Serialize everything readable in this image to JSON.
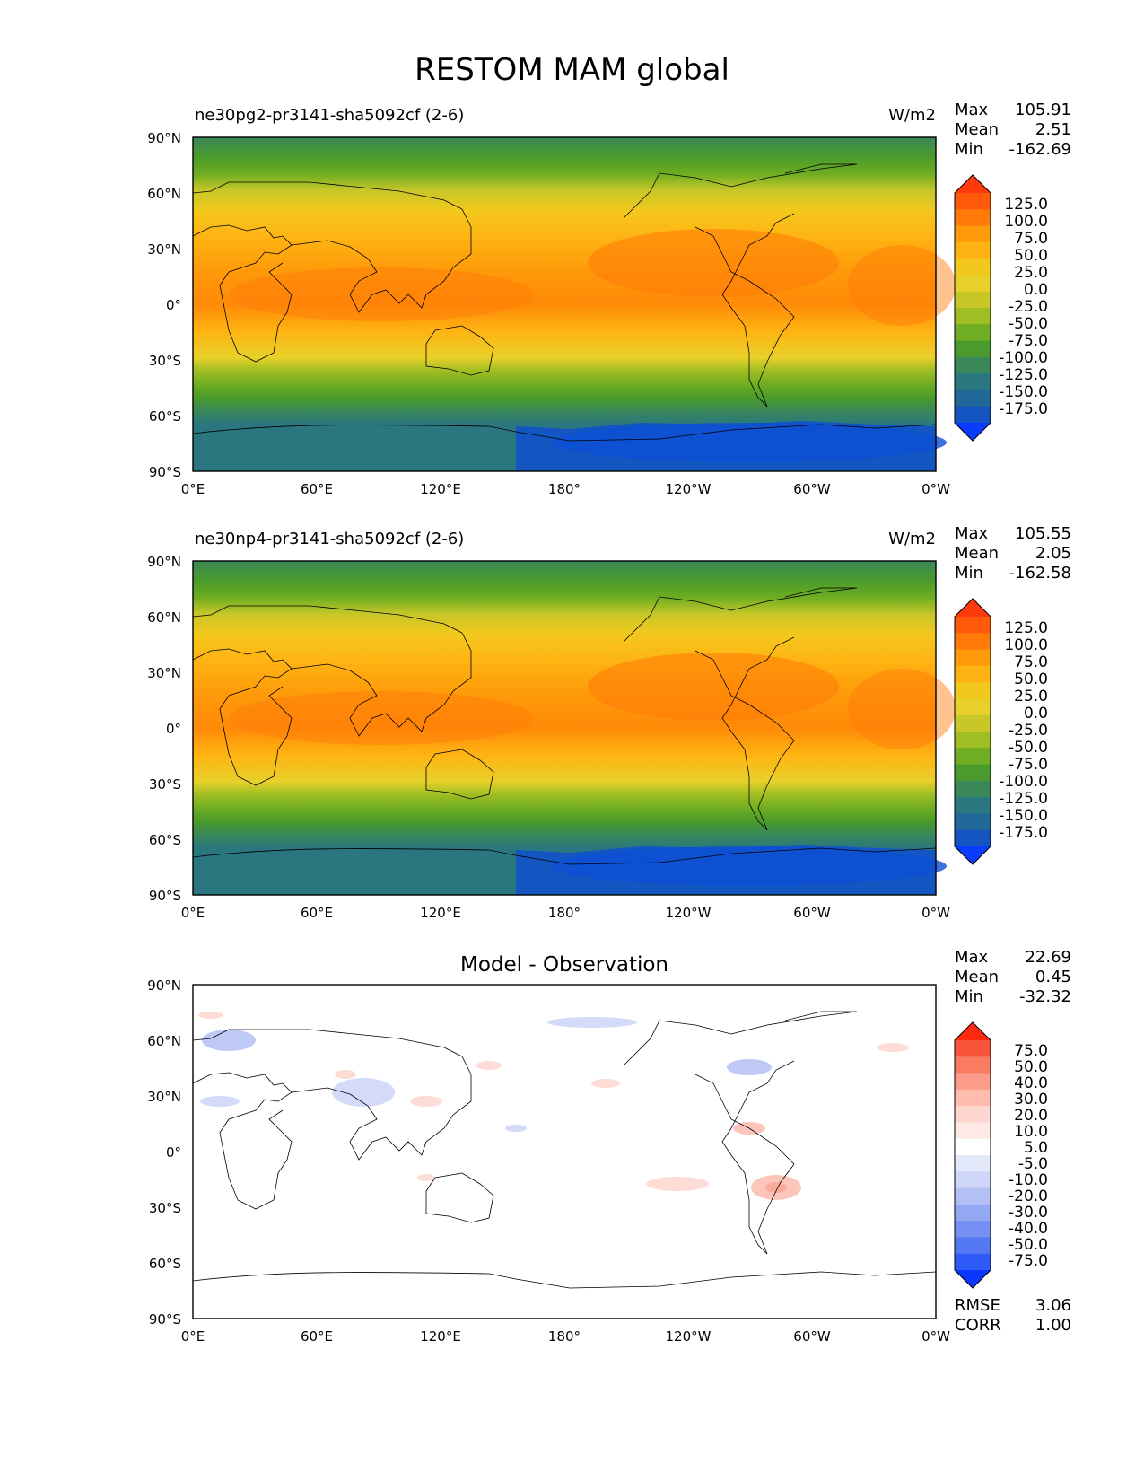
{
  "figure": {
    "title": "RESTOM MAM global"
  },
  "axes": {
    "lat_ticks": [
      "90°N",
      "60°N",
      "30°N",
      "0°",
      "30°S",
      "60°S",
      "90°S"
    ],
    "lon_ticks": [
      "0°E",
      "60°E",
      "120°E",
      "180°",
      "120°W",
      "60°W",
      "0°W"
    ]
  },
  "panels": [
    {
      "title_left": "ne30pg2-pr3141-sha5092cf (2-6)",
      "title_center": "",
      "units": "W/m2",
      "stats": {
        "max_label": "Max",
        "max": "105.91",
        "mean_label": "Mean",
        "mean": "2.51",
        "min_label": "Min",
        "min": "-162.69"
      },
      "colorbar": {
        "labels": [
          "125.0",
          "100.0",
          "75.0",
          "50.0",
          "25.0",
          "0.0",
          "-25.0",
          "-50.0",
          "-75.0",
          "-100.0",
          "-125.0",
          "-150.0",
          "-175.0"
        ],
        "colors": [
          "#ff3a0d",
          "#ff5a0a",
          "#ff7a08",
          "#ff9a0a",
          "#ffb312",
          "#f3c81c",
          "#e8d02a",
          "#c9c728",
          "#9fbe23",
          "#6fad22",
          "#4a9b2b",
          "#3a8858",
          "#2a7780",
          "#1f6898",
          "#1356c2",
          "#0a3cff"
        ]
      }
    },
    {
      "title_left": "ne30np4-pr3141-sha5092cf (2-6)",
      "title_center": "",
      "units": "W/m2",
      "stats": {
        "max_label": "Max",
        "max": "105.55",
        "mean_label": "Mean",
        "mean": "2.05",
        "min_label": "Min",
        "min": "-162.58"
      },
      "colorbar": {
        "labels": [
          "125.0",
          "100.0",
          "75.0",
          "50.0",
          "25.0",
          "0.0",
          "-25.0",
          "-50.0",
          "-75.0",
          "-100.0",
          "-125.0",
          "-150.0",
          "-175.0"
        ],
        "colors": [
          "#ff3a0d",
          "#ff5a0a",
          "#ff7a08",
          "#ff9a0a",
          "#ffb312",
          "#f3c81c",
          "#e8d02a",
          "#c9c728",
          "#9fbe23",
          "#6fad22",
          "#4a9b2b",
          "#3a8858",
          "#2a7780",
          "#1f6898",
          "#1356c2",
          "#0a3cff"
        ]
      }
    },
    {
      "title_left": "",
      "title_center": "Model - Observation",
      "units": "",
      "stats": {
        "max_label": "Max",
        "max": "22.69",
        "mean_label": "Mean",
        "mean": "0.45",
        "min_label": "Min",
        "min": "-32.32"
      },
      "colorbar": {
        "labels": [
          "75.0",
          "50.0",
          "40.0",
          "30.0",
          "20.0",
          "10.0",
          "5.0",
          "-5.0",
          "-10.0",
          "-20.0",
          "-30.0",
          "-40.0",
          "-50.0",
          "-75.0"
        ],
        "colors": [
          "#ff2a0f",
          "#f95538",
          "#f97c62",
          "#fb9d8a",
          "#fdbcae",
          "#fdd7cf",
          "#fee9e5",
          "#ffffff",
          "#e4e8fb",
          "#cdd5f8",
          "#b3c0f5",
          "#94a7f3",
          "#7590f2",
          "#5479f2",
          "#2f5cf8",
          "#0a37ff"
        ]
      },
      "metrics": {
        "rmse_label": "RMSE",
        "rmse": "3.06",
        "corr_label": "CORR",
        "corr": "1.00"
      }
    }
  ]
}
